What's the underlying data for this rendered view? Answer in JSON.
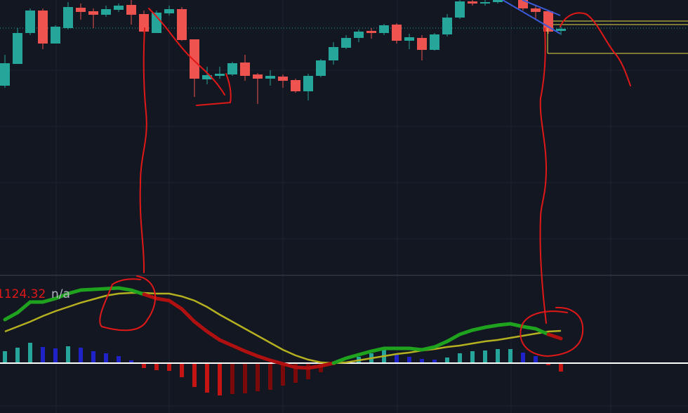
{
  "chart_data": [
    {
      "type": "candlestick",
      "background": "#131722",
      "up_color": "#26a69a",
      "down_color": "#ef5350",
      "ylim": [
        0,
        390
      ],
      "price_line": 350,
      "price_line_color": "#26a69a",
      "open": [
        268,
        299,
        343,
        375,
        328,
        350,
        379,
        374,
        369,
        376,
        383,
        370,
        343,
        371,
        377,
        334,
        277,
        282,
        284,
        301,
        284,
        278,
        281,
        276,
        260,
        282,
        304,
        322,
        336,
        346,
        343,
        355,
        332,
        336,
        319,
        341,
        365,
        388,
        385,
        387,
        null,
        390,
        378,
        374,
        346
      ],
      "high": [
        312,
        350,
        378,
        378,
        354,
        387,
        385,
        378,
        382,
        385,
        390,
        375,
        375,
        382,
        380,
        334,
        295,
        295,
        302,
        312,
        286,
        290,
        284,
        278,
        285,
        306,
        330,
        340,
        348,
        350,
        356,
        357,
        342,
        340,
        343,
        370,
        390,
        390,
        390,
        390,
        null,
        390,
        382,
        376,
        352
      ],
      "low": [
        265,
        299,
        340,
        320,
        328,
        348,
        362,
        350,
        366,
        373,
        355,
        343,
        343,
        368,
        332,
        252,
        270,
        278,
        282,
        275,
        242,
        268,
        265,
        258,
        247,
        280,
        298,
        320,
        330,
        335,
        340,
        328,
        320,
        304,
        318,
        338,
        363,
        382,
        382,
        385,
        null,
        375,
        362,
        342,
        340
      ],
      "close": [
        300,
        343,
        375,
        328,
        352,
        380,
        373,
        369,
        377,
        382,
        369,
        345,
        372,
        377,
        333,
        278,
        283,
        285,
        300,
        282,
        278,
        282,
        275,
        260,
        282,
        304,
        323,
        336,
        345,
        343,
        354,
        332,
        337,
        319,
        341,
        365,
        388,
        385,
        387,
        390,
        null,
        378,
        373,
        345,
        349
      ]
    },
    {
      "type": "macd",
      "readout": [
        "1124.32",
        "n/a"
      ],
      "ylim": [
        -63,
        125
      ],
      "zero_line_color": "#ffffff",
      "histogram": {
        "values": [
          17,
          22,
          29,
          23,
          21,
          24,
          22,
          17,
          14,
          10,
          4,
          -7,
          -10,
          -11,
          -20,
          -34,
          -42,
          -46,
          -44,
          -43,
          -40,
          -38,
          -32,
          -28,
          -23,
          -13,
          -3,
          2,
          9,
          14,
          20,
          13,
          9,
          6,
          5,
          8,
          14,
          17,
          18,
          20,
          20,
          15,
          10,
          -3,
          -12
        ],
        "colors": {
          "positive_rising": "#26a69a",
          "positive_falling": "#1e22c8",
          "negative_falling": "#c41414",
          "negative_rising": "#7a0a0a"
        }
      },
      "macd": {
        "values": [
          62,
          72,
          87,
          87,
          92,
          99,
          104,
          105,
          106,
          107,
          104,
          98,
          92,
          89,
          77,
          59,
          45,
          33,
          25,
          17,
          10,
          4,
          -1,
          -6,
          -7,
          -4,
          0,
          7,
          12,
          17,
          21,
          21,
          21,
          19,
          23,
          31,
          41,
          47,
          51,
          54,
          56,
          52,
          49,
          41,
          35
        ],
        "above_color": "#1fa31f",
        "below_color": "#b01010"
      },
      "signal": {
        "values": [
          45,
          52,
          59,
          67,
          74,
          80,
          86,
          91,
          96,
          99,
          100,
          100,
          99,
          99,
          95,
          89,
          80,
          69,
          59,
          49,
          39,
          29,
          19,
          11,
          5,
          1,
          0,
          1,
          4,
          7,
          10,
          13,
          15,
          18,
          20,
          23,
          25,
          28,
          31,
          33,
          36,
          39,
          42,
          45,
          46
        ],
        "color": "#b5b020"
      }
    }
  ]
}
